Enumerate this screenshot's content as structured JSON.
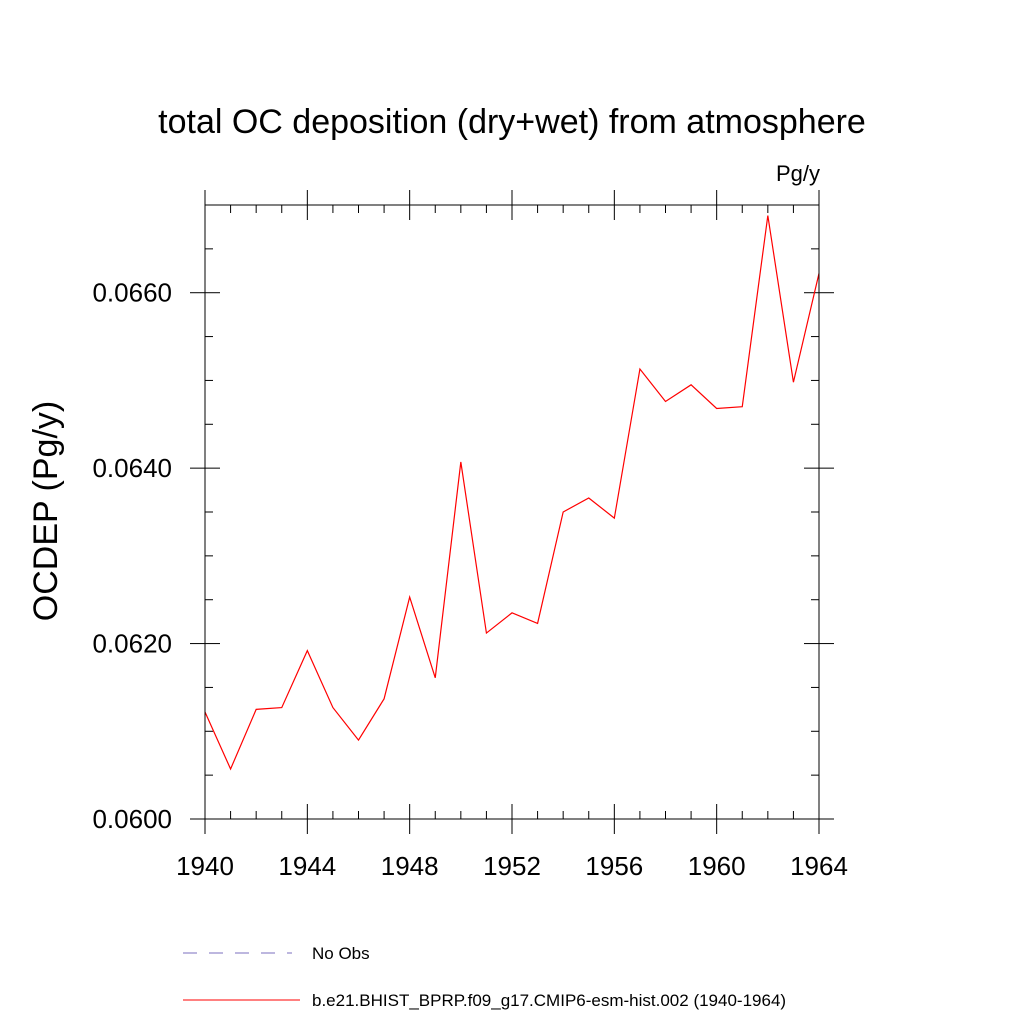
{
  "chart_data": {
    "type": "line",
    "title": "total OC deposition (dry+wet) from atmosphere",
    "units": "Pg/y",
    "xlabel": "",
    "ylabel": "OCDEP  (Pg/y)",
    "xlim": [
      1940,
      1964
    ],
    "ylim": [
      0.06,
      0.067
    ],
    "x_ticks": [
      1940,
      1944,
      1948,
      1952,
      1956,
      1960,
      1964
    ],
    "x_tick_labels": [
      "1940",
      "1944",
      "1948",
      "1952",
      "1956",
      "1960",
      "1964"
    ],
    "y_ticks": [
      0.06,
      0.062,
      0.064,
      0.066
    ],
    "y_tick_labels": [
      "0.0600",
      "0.0620",
      "0.0640",
      "0.0660"
    ],
    "x_minor_step": 1,
    "y_minor_step": 0.0005,
    "grid": false,
    "series": [
      {
        "name": "b.e21.BHIST_BPRP.f09_g17.CMIP6-esm-hist.002 (1940-1964)",
        "color": "#ff0000",
        "style": "solid",
        "x": [
          1940,
          1941,
          1942,
          1943,
          1944,
          1945,
          1946,
          1947,
          1948,
          1949,
          1950,
          1951,
          1952,
          1953,
          1954,
          1955,
          1956,
          1957,
          1958,
          1959,
          1960,
          1961,
          1962,
          1963,
          1964
        ],
        "values": [
          0.06122,
          0.06057,
          0.06125,
          0.06127,
          0.06192,
          0.06127,
          0.0609,
          0.06137,
          0.06253,
          0.06161,
          0.06407,
          0.06212,
          0.06235,
          0.06223,
          0.0635,
          0.06366,
          0.06343,
          0.06513,
          0.06476,
          0.06495,
          0.06468,
          0.0647,
          0.06688,
          0.06498,
          0.06622
        ]
      }
    ],
    "legend": [
      {
        "label": "No Obs",
        "color": "#7b6fbf",
        "style": "dashed"
      },
      {
        "label": "b.e21.BHIST_BPRP.f09_g17.CMIP6-esm-hist.002 (1940-1964)",
        "color": "#ff0000",
        "style": "solid"
      }
    ],
    "legend_position": "bottom"
  }
}
